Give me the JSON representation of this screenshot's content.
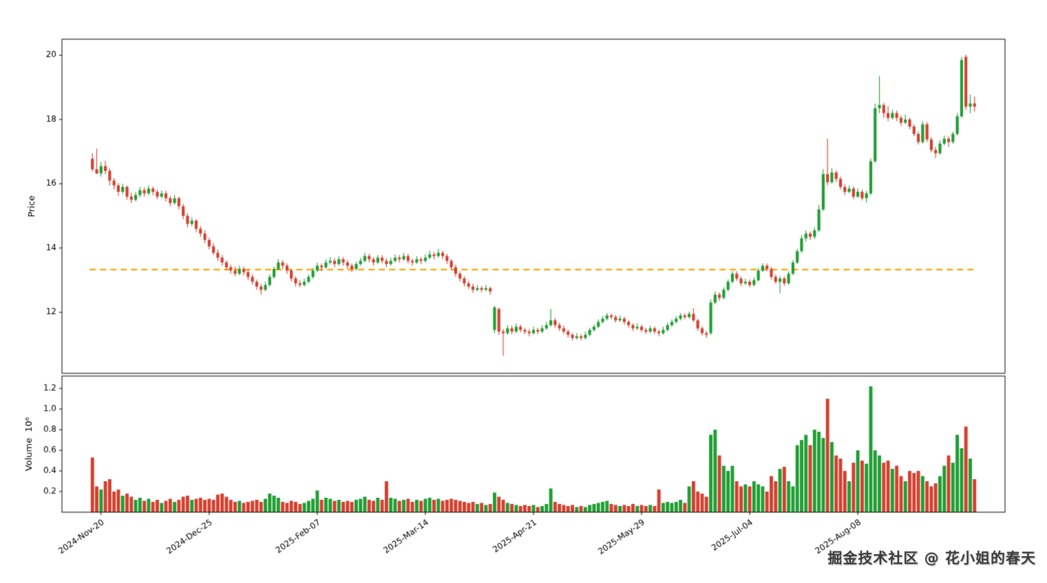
{
  "watermark": {
    "text": "掘金技术社区 @ 花小姐的春天"
  },
  "chart_data": {
    "type": "candlestick",
    "title": "",
    "xlabel": "",
    "grid": false,
    "legend": "none",
    "colors": {
      "up": "#1e9e32",
      "down": "#d43f2e",
      "hline": "#ffa500",
      "axis": "#000000",
      "background": "#ffffff"
    },
    "price": {
      "ylabel": "Price",
      "yticks": [
        12,
        14,
        16,
        18,
        20
      ],
      "ylim": [
        10.1,
        20.5
      ],
      "hline": {
        "value": 13.33,
        "color": "#ffa500",
        "style": "dashed"
      }
    },
    "volume": {
      "ylabel": "Volume  10⁶",
      "yticks": [
        0.2,
        0.4,
        0.6,
        0.8,
        1.0,
        1.2
      ],
      "ylim": [
        0,
        1.32
      ]
    },
    "xticks": [
      {
        "index": 2,
        "label": "2024-Nov-20"
      },
      {
        "index": 27,
        "label": "2024-Dec-25"
      },
      {
        "index": 52,
        "label": "2025-Feb-07"
      },
      {
        "index": 77,
        "label": "2025-Mar-14"
      },
      {
        "index": 102,
        "label": "2025-Apr-21"
      },
      {
        "index": 127,
        "label": "2025-May-29"
      },
      {
        "index": 152,
        "label": "2025-Jul-04"
      },
      {
        "index": 177,
        "label": "2025-Aug-08"
      }
    ],
    "ohlcv_columns": [
      "open",
      "high",
      "low",
      "close",
      "volume_millions"
    ],
    "ohlcv": [
      [
        16.78,
        16.95,
        16.38,
        16.45,
        0.53
      ],
      [
        16.45,
        17.1,
        16.3,
        16.32,
        0.25
      ],
      [
        16.32,
        16.68,
        16.22,
        16.55,
        0.22
      ],
      [
        16.55,
        16.72,
        16.3,
        16.4,
        0.3
      ],
      [
        16.4,
        16.48,
        15.95,
        16.1,
        0.32
      ],
      [
        16.1,
        16.18,
        15.82,
        15.95,
        0.2
      ],
      [
        15.95,
        16.02,
        15.62,
        15.75,
        0.22
      ],
      [
        15.75,
        16.0,
        15.68,
        15.9,
        0.16
      ],
      [
        15.9,
        15.95,
        15.5,
        15.6,
        0.18
      ],
      [
        15.6,
        15.72,
        15.4,
        15.5,
        0.15
      ],
      [
        15.5,
        15.75,
        15.45,
        15.65,
        0.12
      ],
      [
        15.65,
        15.9,
        15.58,
        15.8,
        0.14
      ],
      [
        15.8,
        15.88,
        15.6,
        15.7,
        0.11
      ],
      [
        15.7,
        15.95,
        15.65,
        15.85,
        0.13
      ],
      [
        15.85,
        15.92,
        15.65,
        15.75,
        0.1
      ],
      [
        15.75,
        15.82,
        15.52,
        15.6,
        0.12
      ],
      [
        15.6,
        15.8,
        15.55,
        15.7,
        0.09
      ],
      [
        15.7,
        15.78,
        15.45,
        15.55,
        0.11
      ],
      [
        15.55,
        15.62,
        15.3,
        15.4,
        0.13
      ],
      [
        15.4,
        15.65,
        15.35,
        15.55,
        0.1
      ],
      [
        15.55,
        15.6,
        15.2,
        15.3,
        0.12
      ],
      [
        15.3,
        15.38,
        14.9,
        15.0,
        0.15
      ],
      [
        15.0,
        15.08,
        14.65,
        14.75,
        0.16
      ],
      [
        14.75,
        14.95,
        14.68,
        14.85,
        0.12
      ],
      [
        14.85,
        14.9,
        14.5,
        14.6,
        0.13
      ],
      [
        14.6,
        14.68,
        14.35,
        14.45,
        0.14
      ],
      [
        14.45,
        14.55,
        14.15,
        14.25,
        0.12
      ],
      [
        14.25,
        14.32,
        13.95,
        14.05,
        0.13
      ],
      [
        14.05,
        14.15,
        13.78,
        13.85,
        0.12
      ],
      [
        13.85,
        13.95,
        13.6,
        13.7,
        0.17
      ],
      [
        13.7,
        13.78,
        13.45,
        13.55,
        0.18
      ],
      [
        13.55,
        13.62,
        13.3,
        13.4,
        0.15
      ],
      [
        13.4,
        13.48,
        13.2,
        13.3,
        0.12
      ],
      [
        13.3,
        13.42,
        13.12,
        13.2,
        0.1
      ],
      [
        13.2,
        13.45,
        13.15,
        13.35,
        0.11
      ],
      [
        13.35,
        13.42,
        13.15,
        13.25,
        0.09
      ],
      [
        13.25,
        13.32,
        13.0,
        13.1,
        0.1
      ],
      [
        13.1,
        13.18,
        12.85,
        12.95,
        0.11
      ],
      [
        12.95,
        13.02,
        12.7,
        12.8,
        0.12
      ],
      [
        12.8,
        12.88,
        12.55,
        12.7,
        0.1
      ],
      [
        12.7,
        12.95,
        12.65,
        12.85,
        0.13
      ],
      [
        12.85,
        13.18,
        12.8,
        13.1,
        0.18
      ],
      [
        13.1,
        13.42,
        13.05,
        13.35,
        0.16
      ],
      [
        13.35,
        13.65,
        13.3,
        13.55,
        0.14
      ],
      [
        13.55,
        13.62,
        13.35,
        13.45,
        0.1
      ],
      [
        13.45,
        13.52,
        13.2,
        13.3,
        0.09
      ],
      [
        13.3,
        13.35,
        12.95,
        13.05,
        0.11
      ],
      [
        13.05,
        13.12,
        12.8,
        12.9,
        0.1
      ],
      [
        12.9,
        13.0,
        12.78,
        12.85,
        0.08
      ],
      [
        12.85,
        13.05,
        12.8,
        12.95,
        0.09
      ],
      [
        12.95,
        13.18,
        12.9,
        13.1,
        0.11
      ],
      [
        13.1,
        13.38,
        13.05,
        13.3,
        0.13
      ],
      [
        13.3,
        13.55,
        13.25,
        13.45,
        0.21
      ],
      [
        13.45,
        13.52,
        13.28,
        13.4,
        0.12
      ],
      [
        13.4,
        13.65,
        13.35,
        13.55,
        0.14
      ],
      [
        13.55,
        13.72,
        13.48,
        13.6,
        0.13
      ],
      [
        13.6,
        13.68,
        13.4,
        13.5,
        0.11
      ],
      [
        13.5,
        13.75,
        13.45,
        13.65,
        0.12
      ],
      [
        13.65,
        13.72,
        13.45,
        13.55,
        0.1
      ],
      [
        13.55,
        13.62,
        13.35,
        13.45,
        0.11
      ],
      [
        13.45,
        13.52,
        13.25,
        13.35,
        0.1
      ],
      [
        13.35,
        13.58,
        13.3,
        13.5,
        0.12
      ],
      [
        13.5,
        13.7,
        13.45,
        13.6,
        0.13
      ],
      [
        13.6,
        13.85,
        13.55,
        13.75,
        0.15
      ],
      [
        13.75,
        13.82,
        13.55,
        13.65,
        0.12
      ],
      [
        13.65,
        13.72,
        13.45,
        13.55,
        0.11
      ],
      [
        13.55,
        13.78,
        13.5,
        13.7,
        0.14
      ],
      [
        13.7,
        13.78,
        13.52,
        13.6,
        0.12
      ],
      [
        13.6,
        13.68,
        13.4,
        13.5,
        0.3
      ],
      [
        13.5,
        13.7,
        13.45,
        13.6,
        0.14
      ],
      [
        13.6,
        13.8,
        13.55,
        13.7,
        0.13
      ],
      [
        13.7,
        13.78,
        13.55,
        13.65,
        0.11
      ],
      [
        13.65,
        13.85,
        13.6,
        13.75,
        0.12
      ],
      [
        13.75,
        13.82,
        13.52,
        13.6,
        0.13
      ],
      [
        13.6,
        13.68,
        13.45,
        13.55,
        0.1
      ],
      [
        13.55,
        13.75,
        13.5,
        13.65,
        0.12
      ],
      [
        13.65,
        13.72,
        13.5,
        13.6,
        0.11
      ],
      [
        13.6,
        13.8,
        13.55,
        13.7,
        0.13
      ],
      [
        13.7,
        13.92,
        13.65,
        13.8,
        0.14
      ],
      [
        13.8,
        13.88,
        13.65,
        13.75,
        0.12
      ],
      [
        13.75,
        13.98,
        13.7,
        13.85,
        0.13
      ],
      [
        13.85,
        13.92,
        13.65,
        13.75,
        0.11
      ],
      [
        13.75,
        13.82,
        13.5,
        13.6,
        0.12
      ],
      [
        13.6,
        13.65,
        13.3,
        13.4,
        0.13
      ],
      [
        13.4,
        13.48,
        13.1,
        13.2,
        0.12
      ],
      [
        13.2,
        13.28,
        12.95,
        13.05,
        0.11
      ],
      [
        13.05,
        13.12,
        12.8,
        12.9,
        0.1
      ],
      [
        12.9,
        12.98,
        12.72,
        12.8,
        0.09
      ],
      [
        12.8,
        12.88,
        12.6,
        12.7,
        0.1
      ],
      [
        12.7,
        12.85,
        12.65,
        12.75,
        0.08
      ],
      [
        12.75,
        12.82,
        12.62,
        12.7,
        0.09
      ],
      [
        12.7,
        12.85,
        12.65,
        12.75,
        0.07
      ],
      [
        12.75,
        12.8,
        12.55,
        12.65,
        0.08
      ],
      [
        11.45,
        12.2,
        11.35,
        12.15,
        0.19
      ],
      [
        12.1,
        12.15,
        11.3,
        11.4,
        0.15
      ],
      [
        11.4,
        11.48,
        10.65,
        11.35,
        0.12
      ],
      [
        11.35,
        11.6,
        11.3,
        11.5,
        0.09
      ],
      [
        11.5,
        11.58,
        11.32,
        11.4,
        0.08
      ],
      [
        11.4,
        11.65,
        11.35,
        11.55,
        0.07
      ],
      [
        11.55,
        11.62,
        11.38,
        11.45,
        0.06
      ],
      [
        11.45,
        11.52,
        11.32,
        11.4,
        0.07
      ],
      [
        11.4,
        11.48,
        11.25,
        11.35,
        0.06
      ],
      [
        11.35,
        11.55,
        11.3,
        11.45,
        0.07
      ],
      [
        11.45,
        11.52,
        11.32,
        11.4,
        0.05
      ],
      [
        11.4,
        11.6,
        11.35,
        11.5,
        0.06
      ],
      [
        11.5,
        11.7,
        11.45,
        11.6,
        0.08
      ],
      [
        11.6,
        12.1,
        11.55,
        11.75,
        0.23
      ],
      [
        11.75,
        11.82,
        11.52,
        11.6,
        0.1
      ],
      [
        11.6,
        11.68,
        11.42,
        11.5,
        0.08
      ],
      [
        11.5,
        11.58,
        11.32,
        11.4,
        0.07
      ],
      [
        11.4,
        11.46,
        11.22,
        11.3,
        0.06
      ],
      [
        11.3,
        11.36,
        11.12,
        11.2,
        0.07
      ],
      [
        11.2,
        11.35,
        11.15,
        11.25,
        0.05
      ],
      [
        11.25,
        11.32,
        11.12,
        11.2,
        0.06
      ],
      [
        11.2,
        11.4,
        11.15,
        11.3,
        0.05
      ],
      [
        11.3,
        11.52,
        11.25,
        11.45,
        0.07
      ],
      [
        11.45,
        11.62,
        11.4,
        11.55,
        0.08
      ],
      [
        11.55,
        11.78,
        11.5,
        11.7,
        0.09
      ],
      [
        11.7,
        11.88,
        11.65,
        11.8,
        0.1
      ],
      [
        11.8,
        11.98,
        11.75,
        11.9,
        0.11
      ],
      [
        11.9,
        11.96,
        11.78,
        11.85,
        0.08
      ],
      [
        11.85,
        11.92,
        11.68,
        11.75,
        0.07
      ],
      [
        11.75,
        11.9,
        11.7,
        11.8,
        0.06
      ],
      [
        11.8,
        11.86,
        11.62,
        11.7,
        0.07
      ],
      [
        11.7,
        11.76,
        11.52,
        11.6,
        0.06
      ],
      [
        11.6,
        11.66,
        11.42,
        11.5,
        0.08
      ],
      [
        11.5,
        11.65,
        11.45,
        11.55,
        0.06
      ],
      [
        11.55,
        11.62,
        11.38,
        11.45,
        0.07
      ],
      [
        11.45,
        11.52,
        11.32,
        11.4,
        0.06
      ],
      [
        11.4,
        11.58,
        11.35,
        11.5,
        0.07
      ],
      [
        11.5,
        11.56,
        11.32,
        11.4,
        0.06
      ],
      [
        11.4,
        11.46,
        11.25,
        11.35,
        0.22
      ],
      [
        11.35,
        11.55,
        11.3,
        11.45,
        0.09
      ],
      [
        11.45,
        11.68,
        11.4,
        11.6,
        0.1
      ],
      [
        11.6,
        11.78,
        11.55,
        11.7,
        0.09
      ],
      [
        11.7,
        11.88,
        11.65,
        11.8,
        0.1
      ],
      [
        11.8,
        11.98,
        11.75,
        11.9,
        0.12
      ],
      [
        11.9,
        11.97,
        11.78,
        11.85,
        0.09
      ],
      [
        11.85,
        12.02,
        11.8,
        11.95,
        0.25
      ],
      [
        11.95,
        12.12,
        11.7,
        11.75,
        0.3
      ],
      [
        11.75,
        11.8,
        11.42,
        11.5,
        0.2
      ],
      [
        11.5,
        11.56,
        11.28,
        11.35,
        0.18
      ],
      [
        11.35,
        11.42,
        11.2,
        11.3,
        0.15
      ],
      [
        11.35,
        12.4,
        11.3,
        12.3,
        0.75
      ],
      [
        12.3,
        12.65,
        12.25,
        12.55,
        0.8
      ],
      [
        12.55,
        12.62,
        12.35,
        12.45,
        0.55
      ],
      [
        12.45,
        12.78,
        12.4,
        12.7,
        0.45
      ],
      [
        12.7,
        13.02,
        12.65,
        12.95,
        0.4
      ],
      [
        12.95,
        13.28,
        12.9,
        13.2,
        0.45
      ],
      [
        13.2,
        13.28,
        12.98,
        13.05,
        0.3
      ],
      [
        13.05,
        13.12,
        12.82,
        12.9,
        0.25
      ],
      [
        12.9,
        13.05,
        12.85,
        12.95,
        0.27
      ],
      [
        12.95,
        13.02,
        12.78,
        12.85,
        0.25
      ],
      [
        12.85,
        13.08,
        12.8,
        13.0,
        0.3
      ],
      [
        13.0,
        13.38,
        12.95,
        13.3,
        0.27
      ],
      [
        13.3,
        13.52,
        13.25,
        13.45,
        0.25
      ],
      [
        13.45,
        13.52,
        13.28,
        13.35,
        0.2
      ],
      [
        13.35,
        13.42,
        13.02,
        13.1,
        0.35
      ],
      [
        13.1,
        13.18,
        12.88,
        12.95,
        0.3
      ],
      [
        12.95,
        13.12,
        12.6,
        13.05,
        0.42
      ],
      [
        13.05,
        13.12,
        12.82,
        12.9,
        0.44
      ],
      [
        12.9,
        13.28,
        12.85,
        13.2,
        0.3
      ],
      [
        13.2,
        13.62,
        13.15,
        13.55,
        0.25
      ],
      [
        13.55,
        13.98,
        13.5,
        13.9,
        0.65
      ],
      [
        13.9,
        14.4,
        13.85,
        14.3,
        0.7
      ],
      [
        14.3,
        14.55,
        14.2,
        14.45,
        0.75
      ],
      [
        14.45,
        14.52,
        14.25,
        14.35,
        0.65
      ],
      [
        14.35,
        14.65,
        14.28,
        14.55,
        0.8
      ],
      [
        14.55,
        15.35,
        14.5,
        15.2,
        0.78
      ],
      [
        15.2,
        16.45,
        15.15,
        16.3,
        0.72
      ],
      [
        16.3,
        17.4,
        15.95,
        16.05,
        1.1
      ],
      [
        16.05,
        16.48,
        16.0,
        16.35,
        0.68
      ],
      [
        16.35,
        16.42,
        16.05,
        16.15,
        0.55
      ],
      [
        16.15,
        16.22,
        15.82,
        15.9,
        0.52
      ],
      [
        15.9,
        15.98,
        15.65,
        15.75,
        0.4
      ],
      [
        15.75,
        15.95,
        15.7,
        15.85,
        0.3
      ],
      [
        15.85,
        15.92,
        15.52,
        15.6,
        0.48
      ],
      [
        15.6,
        15.85,
        15.55,
        15.75,
        0.6
      ],
      [
        15.75,
        15.82,
        15.48,
        15.55,
        0.5
      ],
      [
        15.55,
        15.78,
        15.42,
        15.7,
        0.47
      ],
      [
        15.7,
        16.8,
        15.65,
        16.7,
        1.22
      ],
      [
        16.7,
        18.5,
        16.65,
        18.35,
        0.6
      ],
      [
        18.35,
        19.35,
        18.2,
        18.45,
        0.55
      ],
      [
        18.45,
        18.52,
        18.05,
        18.2,
        0.48
      ],
      [
        18.2,
        18.42,
        17.95,
        18.05,
        0.5
      ],
      [
        18.05,
        18.3,
        18.0,
        18.2,
        0.42
      ],
      [
        18.2,
        18.28,
        17.95,
        18.05,
        0.45
      ],
      [
        18.05,
        18.12,
        17.8,
        17.9,
        0.35
      ],
      [
        17.9,
        18.15,
        17.85,
        18.0,
        0.3
      ],
      [
        18.0,
        18.06,
        17.7,
        17.78,
        0.4
      ],
      [
        17.78,
        17.85,
        17.48,
        17.55,
        0.38
      ],
      [
        17.55,
        17.62,
        17.22,
        17.3,
        0.4
      ],
      [
        17.3,
        17.95,
        17.25,
        17.85,
        0.35
      ],
      [
        17.85,
        17.92,
        17.3,
        17.38,
        0.3
      ],
      [
        17.38,
        17.45,
        16.98,
        17.05,
        0.25
      ],
      [
        17.05,
        17.15,
        16.8,
        16.95,
        0.28
      ],
      [
        16.95,
        17.35,
        16.9,
        17.25,
        0.35
      ],
      [
        17.25,
        17.5,
        17.2,
        17.4,
        0.45
      ],
      [
        17.4,
        17.48,
        17.15,
        17.3,
        0.55
      ],
      [
        17.3,
        17.62,
        17.25,
        17.55,
        0.48
      ],
      [
        17.55,
        18.2,
        17.5,
        18.1,
        0.75
      ],
      [
        18.1,
        19.95,
        18.05,
        19.85,
        0.62
      ],
      [
        19.95,
        20.02,
        18.3,
        18.4,
        0.83
      ],
      [
        18.4,
        18.78,
        18.2,
        18.5,
        0.52
      ],
      [
        18.5,
        18.72,
        18.25,
        18.4,
        0.32
      ]
    ]
  }
}
